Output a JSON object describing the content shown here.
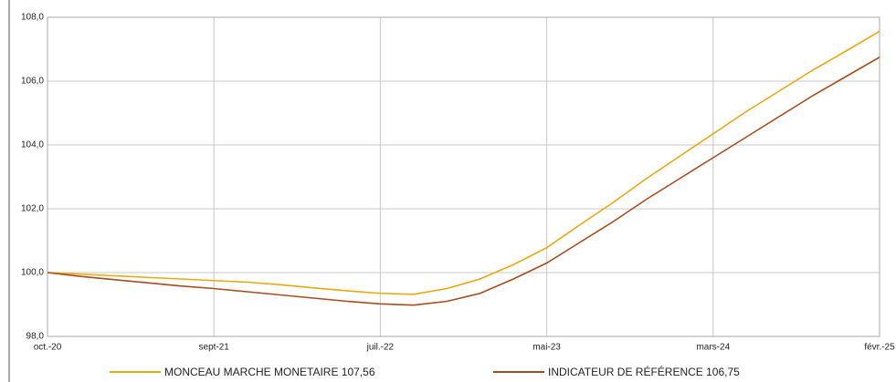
{
  "chart_data": {
    "type": "line",
    "categories": [
      "oct.-20",
      null,
      null,
      null,
      null,
      "sept-21",
      null,
      null,
      null,
      null,
      "juil.-22",
      null,
      null,
      null,
      null,
      "mai-23",
      null,
      null,
      null,
      null,
      "mars-24",
      null,
      null,
      null,
      null,
      "févr.-25"
    ],
    "series": [
      {
        "name": "MONCEAU MARCHE MONETAIRE 107,56",
        "color": "#e8a90f",
        "values": [
          100.0,
          99.95,
          99.9,
          99.85,
          99.8,
          99.75,
          99.7,
          99.62,
          99.52,
          99.43,
          99.35,
          99.32,
          99.5,
          99.8,
          100.25,
          100.78,
          101.5,
          102.2,
          102.95,
          103.65,
          104.35,
          105.05,
          105.7,
          106.35,
          106.95,
          107.56
        ]
      },
      {
        "name": "INDICATEUR DE RÉFÉRENCE 106,75",
        "color": "#a84c1c",
        "values": [
          100.0,
          99.88,
          99.78,
          99.68,
          99.58,
          99.5,
          99.4,
          99.3,
          99.2,
          99.1,
          99.02,
          98.98,
          99.1,
          99.35,
          99.8,
          100.3,
          100.95,
          101.6,
          102.3,
          102.95,
          103.6,
          104.25,
          104.9,
          105.55,
          106.15,
          106.75
        ]
      }
    ],
    "ylim": [
      98,
      108
    ],
    "yticks": [
      {
        "value": 98,
        "label": "98,0"
      },
      {
        "value": 100,
        "label": "100,0"
      },
      {
        "value": 102,
        "label": "102,0"
      },
      {
        "value": 104,
        "label": "104,0"
      },
      {
        "value": 106,
        "label": "106,0"
      },
      {
        "value": 108,
        "label": "108,0"
      }
    ],
    "grid": true
  }
}
